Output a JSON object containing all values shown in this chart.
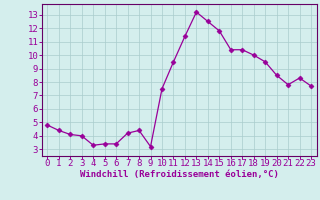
{
  "x": [
    0,
    1,
    2,
    3,
    4,
    5,
    6,
    7,
    8,
    9,
    10,
    11,
    12,
    13,
    14,
    15,
    16,
    17,
    18,
    19,
    20,
    21,
    22,
    23
  ],
  "y": [
    4.8,
    4.4,
    4.1,
    4.0,
    3.3,
    3.4,
    3.4,
    4.2,
    4.4,
    3.2,
    7.5,
    9.5,
    11.4,
    13.2,
    12.5,
    11.8,
    10.4,
    10.4,
    10.0,
    9.5,
    8.5,
    7.8,
    8.3,
    7.7
  ],
  "line_color": "#990099",
  "marker": "D",
  "marker_size": 2.5,
  "bg_color": "#d4eeed",
  "grid_color": "#aacccc",
  "xlabel": "Windchill (Refroidissement éolien,°C)",
  "xlabel_color": "#990099",
  "tick_color": "#990099",
  "spine_color": "#660066",
  "ylim": [
    2.5,
    13.8
  ],
  "xlim": [
    -0.5,
    23.5
  ],
  "yticks": [
    3,
    4,
    5,
    6,
    7,
    8,
    9,
    10,
    11,
    12,
    13
  ],
  "xticks": [
    0,
    1,
    2,
    3,
    4,
    5,
    6,
    7,
    8,
    9,
    10,
    11,
    12,
    13,
    14,
    15,
    16,
    17,
    18,
    19,
    20,
    21,
    22,
    23
  ],
  "tick_fontsize": 6.5,
  "xlabel_fontsize": 6.5
}
